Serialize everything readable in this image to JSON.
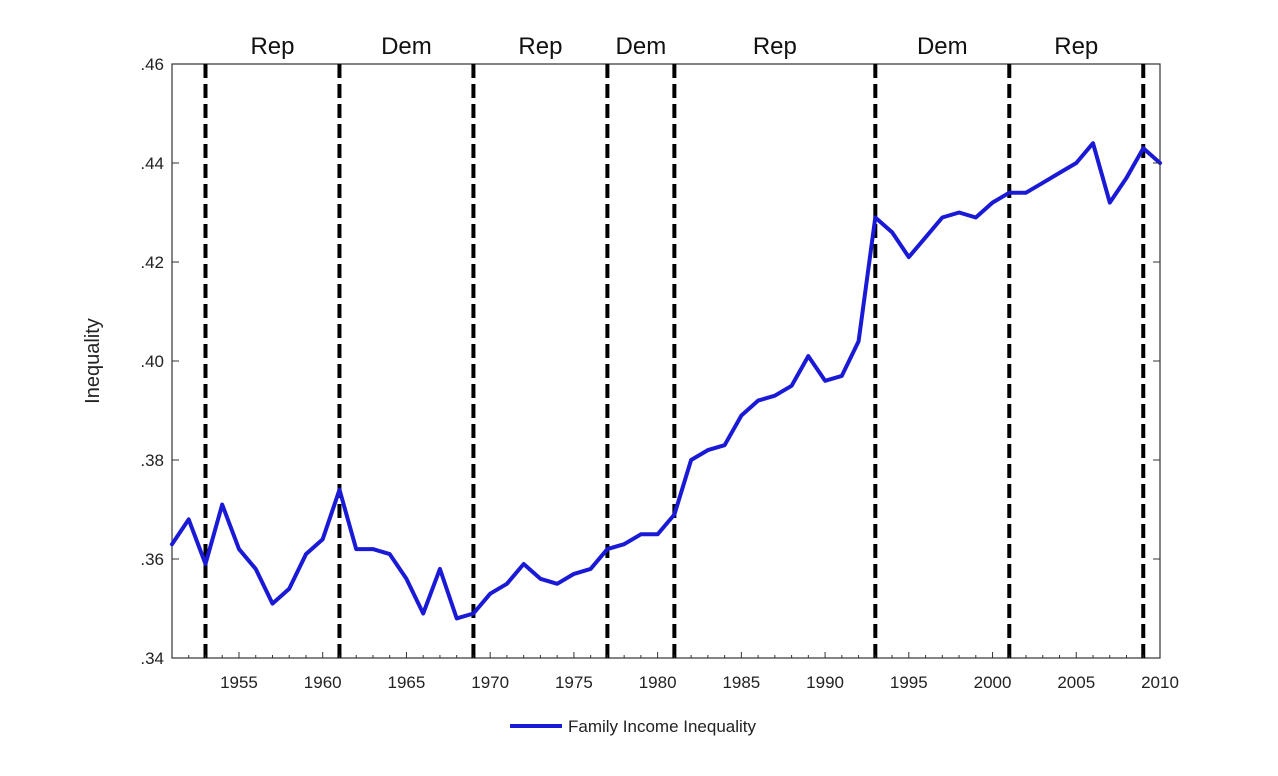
{
  "chart_data": {
    "type": "line",
    "title": "",
    "xlabel": "",
    "ylabel": "Inequality",
    "xlim": [
      1951,
      2010
    ],
    "ylim": [
      0.34,
      0.46
    ],
    "grid": false,
    "legend_position": "bottom-center",
    "x_ticks": [
      1955,
      1960,
      1965,
      1970,
      1975,
      1980,
      1985,
      1990,
      1995,
      2000,
      2005,
      2010
    ],
    "x_tick_labels": [
      "1955",
      "1960",
      "1965",
      "1970",
      "1975",
      "1980",
      "1985",
      "1990",
      "1995",
      "2000",
      "2005",
      "2010"
    ],
    "y_ticks": [
      0.34,
      0.36,
      0.38,
      0.4,
      0.42,
      0.44,
      0.46
    ],
    "y_tick_labels": [
      ".34",
      ".36",
      ".38",
      ".40",
      ".42",
      ".44",
      ".46"
    ],
    "series": [
      {
        "name": "Family Income Inequality",
        "color": "#1a1ad6",
        "x": [
          1951,
          1952,
          1953,
          1954,
          1955,
          1956,
          1957,
          1958,
          1959,
          1960,
          1961,
          1962,
          1963,
          1964,
          1965,
          1966,
          1967,
          1968,
          1969,
          1970,
          1971,
          1972,
          1973,
          1974,
          1975,
          1976,
          1977,
          1978,
          1979,
          1980,
          1981,
          1982,
          1983,
          1984,
          1985,
          1986,
          1987,
          1988,
          1989,
          1990,
          1991,
          1992,
          1993,
          1994,
          1995,
          1996,
          1997,
          1998,
          1999,
          2000,
          2001,
          2002,
          2003,
          2004,
          2005,
          2006,
          2007,
          2008,
          2009,
          2010
        ],
        "values": [
          0.363,
          0.368,
          0.359,
          0.371,
          0.362,
          0.358,
          0.351,
          0.354,
          0.361,
          0.364,
          0.374,
          0.362,
          0.362,
          0.361,
          0.356,
          0.349,
          0.358,
          0.348,
          0.349,
          0.353,
          0.355,
          0.359,
          0.356,
          0.355,
          0.357,
          0.358,
          0.362,
          0.363,
          0.365,
          0.365,
          0.369,
          0.38,
          0.382,
          0.383,
          0.389,
          0.392,
          0.393,
          0.395,
          0.401,
          0.396,
          0.397,
          0.404,
          0.429,
          0.426,
          0.421,
          0.425,
          0.429,
          0.43,
          0.429,
          0.432,
          0.434,
          0.434,
          0.436,
          0.438,
          0.44,
          0.444,
          0.432,
          0.437,
          0.443,
          0.44
        ]
      }
    ],
    "vlines": [
      {
        "x": 1953,
        "style": "dashed"
      },
      {
        "x": 1961,
        "style": "dashed"
      },
      {
        "x": 1969,
        "style": "dashed"
      },
      {
        "x": 1977,
        "style": "dashed"
      },
      {
        "x": 1981,
        "style": "dashed"
      },
      {
        "x": 1993,
        "style": "dashed"
      },
      {
        "x": 2001,
        "style": "dashed"
      },
      {
        "x": 2009,
        "style": "dashed"
      }
    ],
    "party_labels": [
      {
        "text": "Rep",
        "x": 1957
      },
      {
        "text": "Dem",
        "x": 1965
      },
      {
        "text": "Rep",
        "x": 1973
      },
      {
        "text": "Dem",
        "x": 1979
      },
      {
        "text": "Rep",
        "x": 1987
      },
      {
        "text": "Dem",
        "x": 1997
      },
      {
        "text": "Rep",
        "x": 2005
      }
    ]
  }
}
